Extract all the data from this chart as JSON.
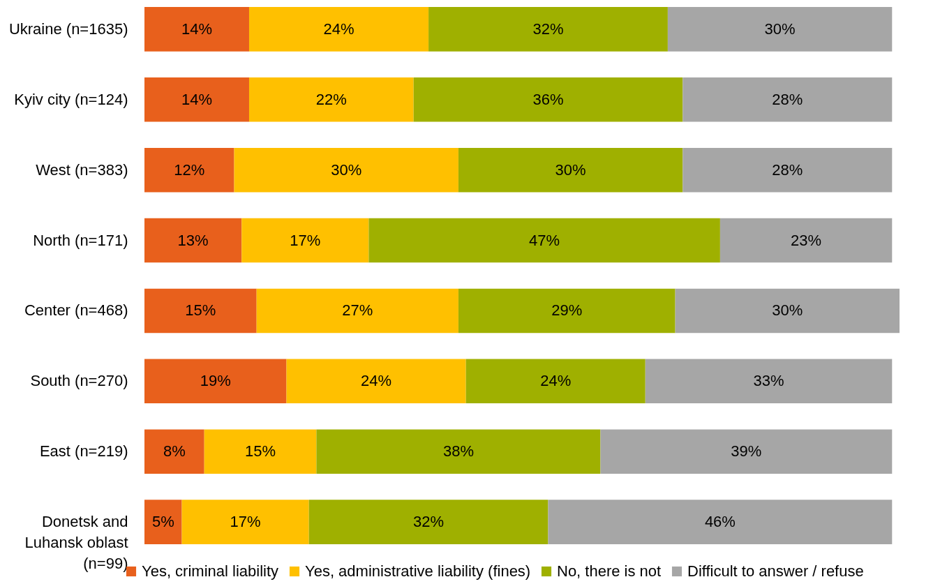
{
  "chart_data": {
    "type": "bar",
    "orientation": "horizontal",
    "stacked": true,
    "legend": "bottom",
    "grid": false,
    "categories": [
      "Ukraine (n=1635)",
      "Kyiv city (n=124)",
      "West (n=383)",
      "North (n=171)",
      "Center (n=468)",
      "South (n=270)",
      "East (n=219)",
      "Donetsk and Luhansk oblast (n=99)"
    ],
    "series": [
      {
        "name": "Yes, criminal liability",
        "color": "#e8601c",
        "values": [
          14,
          14,
          12,
          13,
          15,
          19,
          8,
          5
        ],
        "value_labels": [
          "14%",
          "14%",
          "12%",
          "13%",
          "15%",
          "19%",
          "8%",
          "5%"
        ]
      },
      {
        "name": "Yes, administrative liability (fines)",
        "color": "#ffc000",
        "values": [
          24,
          22,
          30,
          17,
          27,
          24,
          15,
          17
        ],
        "value_labels": [
          "24%",
          "22%",
          "30%",
          "17%",
          "27%",
          "24%",
          "15%",
          "17%"
        ]
      },
      {
        "name": "No, there is not",
        "color": "#9fb000",
        "values": [
          32,
          36,
          30,
          47,
          29,
          24,
          38,
          32
        ],
        "value_labels": [
          "32%",
          "36%",
          "30%",
          "47%",
          "29%",
          "24%",
          "38%",
          "32%"
        ]
      },
      {
        "name": "Difficult to answer / refuse",
        "color": "#a6a6a6",
        "values": [
          30,
          28,
          28,
          23,
          30,
          33,
          39,
          46
        ],
        "value_labels": [
          "30%",
          "28%",
          "28%",
          "23%",
          "30%",
          "33%",
          "39%",
          "46%"
        ]
      }
    ]
  }
}
